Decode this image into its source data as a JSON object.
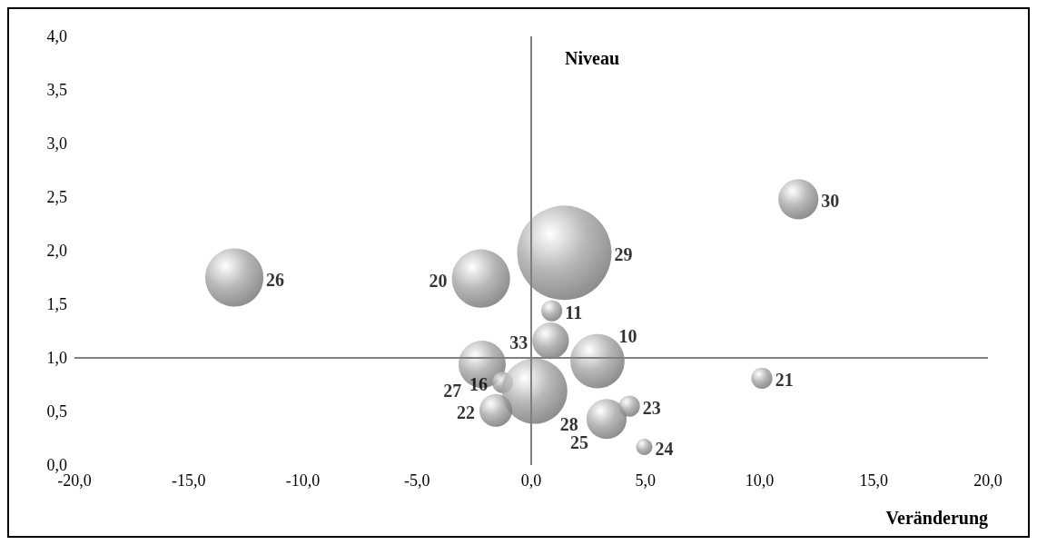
{
  "chart_data": {
    "type": "bubble",
    "xlabel": "Veränderung",
    "ylabel": "Niveau",
    "xlim": [
      -20,
      20
    ],
    "xticks": [
      {
        "value": -20,
        "label": "-20,0"
      },
      {
        "value": -15,
        "label": "-15,0"
      },
      {
        "value": -10,
        "label": "-10,0"
      },
      {
        "value": -5,
        "label": "-5,0"
      },
      {
        "value": 0,
        "label": "0,0"
      },
      {
        "value": 5,
        "label": "5,0"
      },
      {
        "value": 10,
        "label": "10,0"
      },
      {
        "value": 15,
        "label": "15,0"
      },
      {
        "value": 20,
        "label": "20,0"
      }
    ],
    "ylim": [
      0,
      4
    ],
    "yticks": [
      {
        "value": 0,
        "label": "0,0"
      },
      {
        "value": 0.5,
        "label": "0,5"
      },
      {
        "value": 1,
        "label": "1,0"
      },
      {
        "value": 1.5,
        "label": "1,5"
      },
      {
        "value": 2,
        "label": "2,0"
      },
      {
        "value": 2.5,
        "label": "2,5"
      },
      {
        "value": 3,
        "label": "3,0"
      },
      {
        "value": 3.5,
        "label": "3,5"
      },
      {
        "value": 4,
        "label": "4,0"
      }
    ],
    "grid": false,
    "legend": false,
    "ref_lines": [
      {
        "axis": "x",
        "value": 0,
        "color": "#808080"
      },
      {
        "axis": "y",
        "value": 1,
        "color": "#808080"
      }
    ],
    "series": [
      {
        "name": "26",
        "color": "#a6a6a6",
        "x": [
          -13.0
        ],
        "values": [
          1.75
        ],
        "sizes": [
          0.38
        ]
      },
      {
        "name": "20",
        "color": "#a6a6a6",
        "x": [
          -2.2
        ],
        "values": [
          1.74
        ],
        "sizes": [
          0.38
        ]
      },
      {
        "name": "29",
        "color": "#a6a6a6",
        "x": [
          1.45
        ],
        "values": [
          1.98
        ],
        "sizes": [
          1
        ]
      },
      {
        "name": "30",
        "color": "#a6a6a6",
        "x": [
          11.7
        ],
        "values": [
          2.48
        ],
        "sizes": [
          0.18
        ]
      },
      {
        "name": "11",
        "color": "#a6a6a6",
        "x": [
          0.9
        ],
        "values": [
          1.44
        ],
        "sizes": [
          0.05
        ]
      },
      {
        "name": "33",
        "color": "#a6a6a6",
        "x": [
          0.85
        ],
        "values": [
          1.16
        ],
        "sizes": [
          0.15
        ]
      },
      {
        "name": "10",
        "color": "#a6a6a6",
        "x": [
          2.9
        ],
        "values": [
          0.97
        ],
        "sizes": [
          0.33
        ]
      },
      {
        "name": "27",
        "color": "#a6a6a6",
        "x": [
          -2.15
        ],
        "values": [
          0.94
        ],
        "sizes": [
          0.25
        ]
      },
      {
        "name": "16",
        "color": "#a6a6a6",
        "x": [
          -1.25
        ],
        "values": [
          0.77
        ],
        "sizes": [
          0.05
        ]
      },
      {
        "name": "28",
        "color": "#a6a6a6",
        "x": [
          0.15
        ],
        "values": [
          0.69
        ],
        "sizes": [
          0.48
        ]
      },
      {
        "name": "22",
        "color": "#a6a6a6",
        "x": [
          -1.55
        ],
        "values": [
          0.51
        ],
        "sizes": [
          0.12
        ]
      },
      {
        "name": "25",
        "color": "#a6a6a6",
        "x": [
          3.3
        ],
        "values": [
          0.43
        ],
        "sizes": [
          0.18
        ]
      },
      {
        "name": "23",
        "color": "#a6a6a6",
        "x": [
          4.3
        ],
        "values": [
          0.55
        ],
        "sizes": [
          0.05
        ]
      },
      {
        "name": "24",
        "color": "#a6a6a6",
        "x": [
          4.95
        ],
        "values": [
          0.17
        ],
        "sizes": [
          0.03
        ]
      },
      {
        "name": "21",
        "color": "#a6a6a6",
        "x": [
          10.1
        ],
        "values": [
          0.81
        ],
        "sizes": [
          0.05
        ]
      }
    ]
  }
}
